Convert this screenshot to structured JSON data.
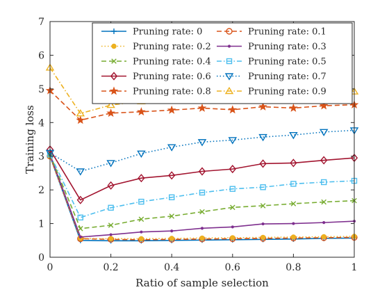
{
  "chart_data": {
    "type": "line",
    "xlabel": "Ratio of sample selection",
    "ylabel": "Training loss",
    "xlim": [
      0,
      1
    ],
    "ylim": [
      0,
      7
    ],
    "xticks": [
      0,
      0.2,
      0.4,
      0.6,
      0.8,
      1
    ],
    "yticks": [
      0,
      1,
      2,
      3,
      4,
      5,
      6,
      7
    ],
    "grid": false,
    "legend_position": "top-right",
    "x": [
      0,
      0.1,
      0.2,
      0.3,
      0.4,
      0.5,
      0.6,
      0.7,
      0.8,
      0.9,
      1.0
    ],
    "series": [
      {
        "name": "Pruning rate: 0",
        "color": "#0072BD",
        "line": "solid",
        "marker": "plus",
        "values": [
          3.0,
          0.5,
          0.49,
          0.49,
          0.5,
          0.51,
          0.52,
          0.53,
          0.54,
          0.56,
          0.57
        ]
      },
      {
        "name": "Pruning rate: 0.1",
        "color": "#D95319",
        "line": "dashed",
        "marker": "circle",
        "values": [
          3.0,
          0.55,
          0.53,
          0.52,
          0.53,
          0.54,
          0.55,
          0.56,
          0.57,
          0.58,
          0.59
        ]
      },
      {
        "name": "Pruning rate: 0.2",
        "color": "#EDB120",
        "line": "dotted",
        "marker": "dot",
        "values": [
          3.0,
          0.56,
          0.55,
          0.55,
          0.56,
          0.57,
          0.58,
          0.59,
          0.6,
          0.61,
          0.62
        ]
      },
      {
        "name": "Pruning rate: 0.3",
        "color": "#7E2F8E",
        "line": "solid",
        "marker": "point",
        "values": [
          3.05,
          0.6,
          0.67,
          0.75,
          0.78,
          0.86,
          0.9,
          0.99,
          1.0,
          1.03,
          1.07
        ]
      },
      {
        "name": "Pruning rate: 0.4",
        "color": "#77AC30",
        "line": "dashed",
        "marker": "x",
        "values": [
          3.05,
          0.85,
          0.95,
          1.13,
          1.22,
          1.35,
          1.48,
          1.53,
          1.59,
          1.64,
          1.68
        ]
      },
      {
        "name": "Pruning rate: 0.5",
        "color": "#4DBEEE",
        "line": "dashdot",
        "marker": "square",
        "values": [
          3.05,
          1.18,
          1.47,
          1.65,
          1.78,
          1.92,
          2.03,
          2.08,
          2.18,
          2.23,
          2.27
        ]
      },
      {
        "name": "Pruning rate: 0.6",
        "color": "#A2142F",
        "line": "solid",
        "marker": "diamond",
        "values": [
          3.2,
          1.7,
          2.13,
          2.35,
          2.43,
          2.55,
          2.62,
          2.78,
          2.8,
          2.88,
          2.95
        ]
      },
      {
        "name": "Pruning rate: 0.7",
        "color": "#0072BD",
        "line": "dotted",
        "marker": "triangle-down",
        "values": [
          3.1,
          2.55,
          2.8,
          3.08,
          3.27,
          3.42,
          3.48,
          3.57,
          3.63,
          3.72,
          3.77
        ]
      },
      {
        "name": "Pruning rate: 0.8",
        "color": "#D95319",
        "line": "dashed",
        "marker": "star",
        "values": [
          4.95,
          4.07,
          4.28,
          4.32,
          4.37,
          4.43,
          4.38,
          4.47,
          4.43,
          4.5,
          4.53
        ]
      },
      {
        "name": "Pruning rate: 0.9",
        "color": "#EDB120",
        "line": "dashdot",
        "marker": "triangle-up",
        "values": [
          5.63,
          4.27,
          4.52,
          4.63,
          4.72,
          4.78,
          4.8,
          4.83,
          4.88,
          4.9,
          4.92
        ]
      }
    ]
  }
}
